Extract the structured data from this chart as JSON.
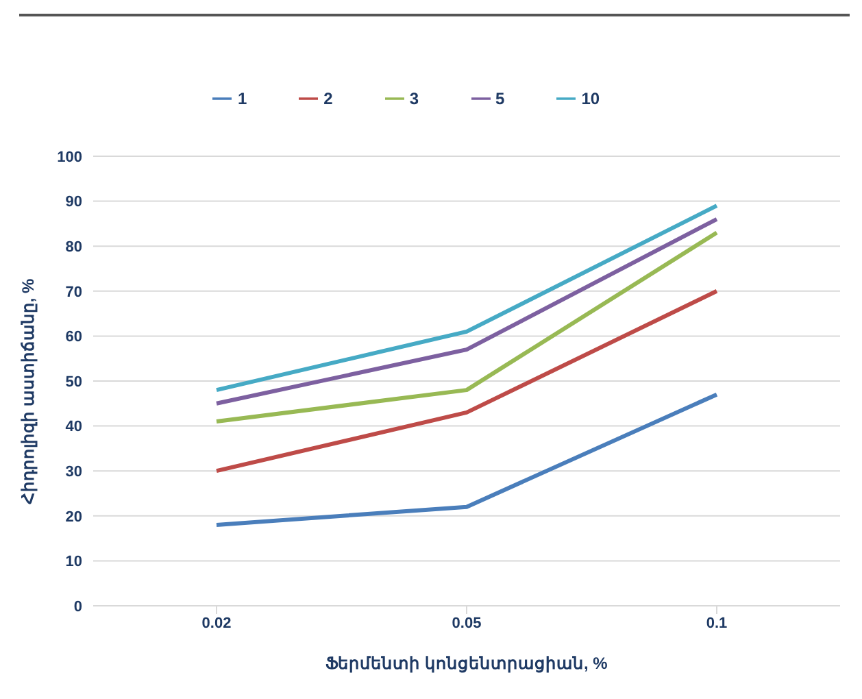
{
  "chart_data": {
    "type": "line",
    "xlabel": "Ֆերմենտի կոնցենտրացիան, %",
    "ylabel": "Հիդրոլիզի աստիճանը, %",
    "categories": [
      "0.02",
      "0.05",
      "0.1"
    ],
    "series": [
      {
        "name": "1",
        "color": "#4a7ebb",
        "values": [
          18,
          22,
          47
        ]
      },
      {
        "name": "2",
        "color": "#be4b48",
        "values": [
          30,
          43,
          70
        ]
      },
      {
        "name": "3",
        "color": "#98b954",
        "values": [
          41,
          48,
          83
        ]
      },
      {
        "name": "5",
        "color": "#7d60a0",
        "values": [
          45,
          57,
          86
        ]
      },
      {
        "name": "10",
        "color": "#46aac5",
        "values": [
          48,
          61,
          89
        ]
      }
    ],
    "ylim": [
      0,
      100
    ],
    "yticks": [
      0,
      10,
      20,
      30,
      40,
      50,
      60,
      70,
      80,
      90,
      100
    ],
    "grid": "y",
    "legend": "top",
    "marker": "none",
    "line_style": "solid"
  }
}
